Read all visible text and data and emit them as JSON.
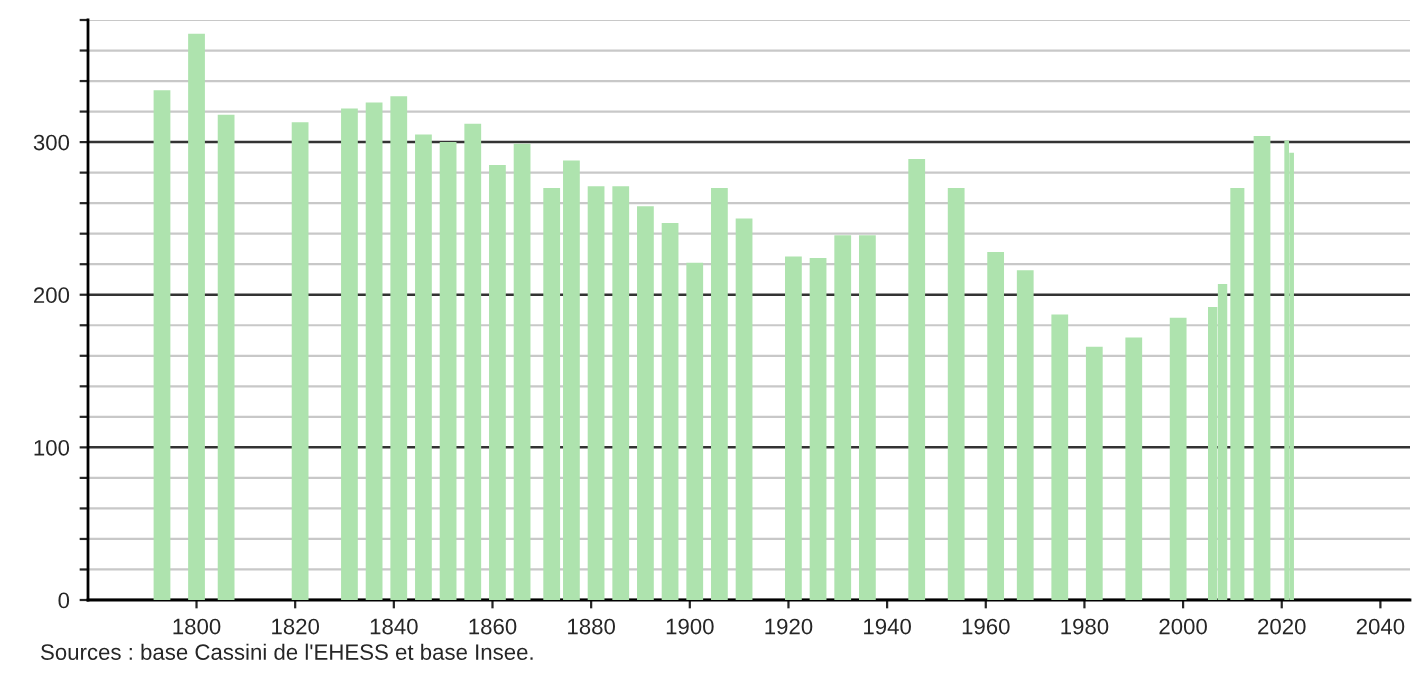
{
  "chart_data": {
    "type": "bar",
    "x": [
      1793,
      1800,
      1806,
      1821,
      1831,
      1836,
      1841,
      1846,
      1851,
      1856,
      1861,
      1866,
      1872,
      1876,
      1881,
      1886,
      1891,
      1896,
      1901,
      1906,
      1911,
      1921,
      1926,
      1931,
      1936,
      1946,
      1954,
      1962,
      1968,
      1975,
      1982,
      1990,
      1999,
      2006,
      2008,
      2011,
      2016,
      2021,
      2022
    ],
    "values": [
      334,
      371,
      318,
      313,
      322,
      326,
      330,
      305,
      300,
      312,
      285,
      299,
      270,
      288,
      271,
      271,
      258,
      247,
      221,
      270,
      250,
      225,
      224,
      239,
      239,
      289,
      270,
      228,
      216,
      187,
      166,
      172,
      185,
      192,
      207,
      270,
      304,
      301,
      293
    ],
    "color": "#aee3ae",
    "xlim": [
      1778,
      2046
    ],
    "xticks": [
      1800,
      1820,
      1840,
      1860,
      1880,
      1900,
      1920,
      1940,
      1960,
      1980,
      2000,
      2020,
      2040
    ],
    "ylim": [
      0,
      380
    ],
    "yticks": [
      0,
      {
        "value": 20,
        "label": null
      },
      {
        "value": 40,
        "label": null
      },
      {
        "value": 60,
        "label": null
      },
      {
        "value": 80,
        "label": null
      },
      100,
      {
        "value": 120,
        "label": null
      },
      {
        "value": 140,
        "label": null
      },
      {
        "value": 160,
        "label": null
      },
      {
        "value": 180,
        "label": null
      },
      200,
      {
        "value": 220,
        "label": null
      },
      {
        "value": 240,
        "label": null
      },
      {
        "value": 260,
        "label": null
      },
      {
        "value": 280,
        "label": null
      },
      300,
      {
        "value": 320,
        "label": null
      },
      {
        "value": 340,
        "label": null
      },
      {
        "value": 360,
        "label": null
      },
      {
        "value": 380,
        "label": null
      }
    ],
    "grid": "y",
    "legend": false,
    "annotations": [
      "Sources : base Cassini de l'EHESS et base Insee."
    ]
  }
}
